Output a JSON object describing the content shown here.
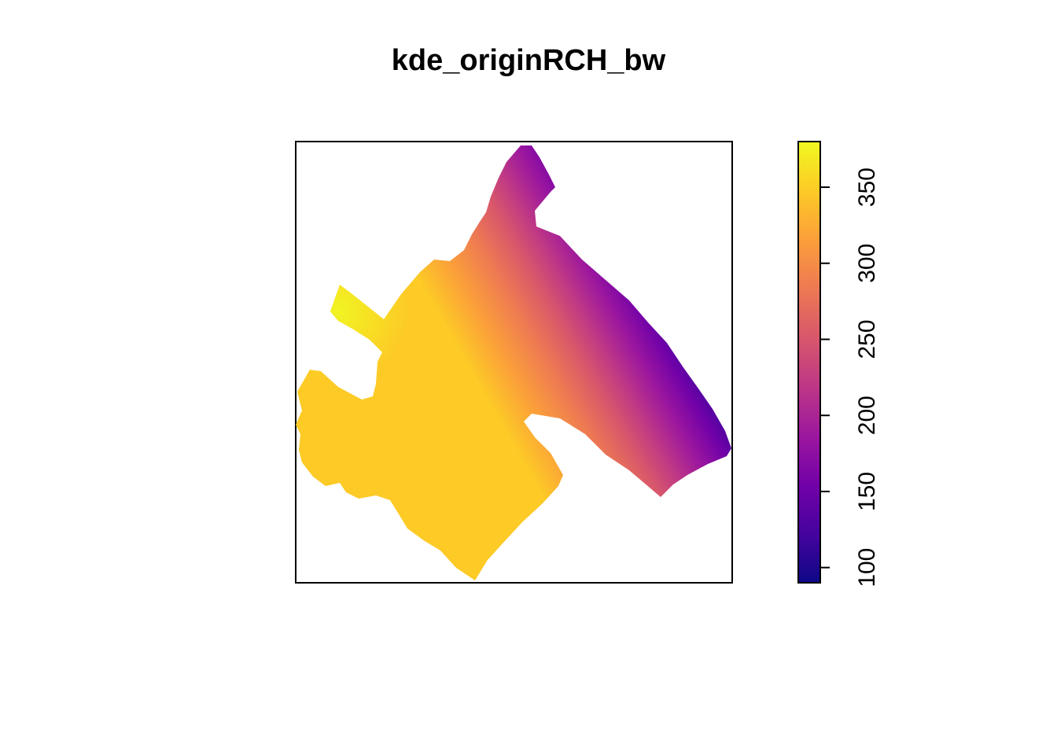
{
  "chart_data": {
    "type": "heatmap",
    "title": "kde_originRCH_bw",
    "xlabel": "",
    "ylabel": "",
    "legend": {
      "type": "colorbar",
      "placement": "right",
      "range": [
        90,
        380
      ],
      "ticks": [
        100,
        150,
        200,
        250,
        300,
        350
      ],
      "tick_labels": [
        "100",
        "150",
        "200",
        "250",
        "300",
        "350"
      ],
      "colormap": "plasma"
    },
    "colormap_stops": [
      "#0d0887",
      "#46039f",
      "#7201a8",
      "#9c179e",
      "#bd3786",
      "#d8576b",
      "#ed7953",
      "#fb9f3a",
      "#fdca26",
      "#f0f921"
    ],
    "field": {
      "description_of_gradient": "values highest (~380) at upper-left arm, decreasing toward lower-right/upper-right edge (~90)",
      "max_value": 380,
      "min_value": 90
    },
    "grid": false
  }
}
